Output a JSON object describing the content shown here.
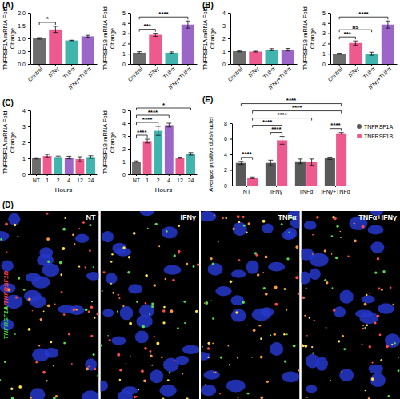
{
  "chart_data": [
    {
      "type": "bar",
      "panel_label": "(A)",
      "y_label": [
        "TNFRSF1A mRNA Fold",
        "Change"
      ],
      "categories": [
        "Control",
        "IFNγ",
        "TNFα",
        "IFNγ+TNFα"
      ],
      "values": [
        1.0,
        1.35,
        0.92,
        1.08
      ],
      "errors": [
        0.03,
        0.12,
        0.01,
        0.04
      ],
      "colors": [
        "#6d6d6d",
        "#ee5a8e",
        "#40b4ad",
        "#9c66c9"
      ],
      "ylim": [
        0,
        2
      ],
      "yticks": [
        {
          "value": 0,
          "label": "0.0"
        },
        {
          "value": 0.5,
          "label": "0.5"
        },
        {
          "value": 1,
          "label": "1.0"
        },
        {
          "value": 1.5,
          "label": "1.5"
        },
        {
          "value": 2,
          "label": "2.0"
        }
      ],
      "significance": [
        {
          "from": 0,
          "to": 1,
          "label": "*"
        }
      ]
    },
    {
      "type": "bar",
      "y_label": [
        "TNFRSF1B mRNA Fold",
        "Change"
      ],
      "categories": [
        "Control",
        "IFNγ",
        "TNFα",
        "IFNγ+TNFα"
      ],
      "values": [
        1.1,
        2.85,
        1.1,
        3.85
      ],
      "errors": [
        0.1,
        0.15,
        0.08,
        0.35
      ],
      "colors": [
        "#6d6d6d",
        "#ee5a8e",
        "#40b4ad",
        "#9c66c9"
      ],
      "ylim": [
        0,
        5
      ],
      "yticks": [
        0,
        1,
        2,
        3,
        4,
        5
      ],
      "significance": [
        {
          "from": 0,
          "to": 1,
          "label": "***"
        },
        {
          "from": 0,
          "to": 3,
          "label": "****"
        }
      ]
    },
    {
      "type": "bar",
      "panel_label": "(B)",
      "y_label": [
        "TNFRSF1A mRNA Fold",
        "Change"
      ],
      "categories": [
        "Control",
        "IFNγ",
        "TNFα",
        "IFNγ+TNFα"
      ],
      "values": [
        1.0,
        0.97,
        1.12,
        1.12
      ],
      "errors": [
        0.05,
        0.03,
        0.08,
        0.1
      ],
      "colors": [
        "#6d6d6d",
        "#ee5a8e",
        "#40b4ad",
        "#9c66c9"
      ],
      "ylim": [
        0,
        4
      ],
      "yticks": [
        0,
        1,
        2,
        3,
        4
      ]
    },
    {
      "type": "bar",
      "y_label": [
        "TNFRSF1B mRNA Fold",
        "Change"
      ],
      "categories": [
        "Control",
        "IFNγ",
        "TNFα",
        "IFNγ+TNFα"
      ],
      "values": [
        1.0,
        2.05,
        1.0,
        3.85
      ],
      "errors": [
        0.05,
        0.2,
        0.15,
        0.35
      ],
      "colors": [
        "#6d6d6d",
        "#ee5a8e",
        "#40b4ad",
        "#9c66c9"
      ],
      "ylim": [
        0,
        5
      ],
      "yticks": [
        0,
        1,
        2,
        3,
        4,
        5
      ],
      "significance": [
        {
          "from": 0,
          "to": 1,
          "label": "***"
        },
        {
          "from": 0,
          "to": 2,
          "label": "ns"
        },
        {
          "from": 0,
          "to": 3,
          "label": "****"
        }
      ]
    },
    {
      "type": "bar",
      "panel_label": "(C)",
      "y_label": [
        "TNFRSF1A mRNA Fold",
        "Change"
      ],
      "x_label": "Hours",
      "categories": [
        "NT",
        "1",
        "2",
        "4",
        "12",
        "24"
      ],
      "values": [
        1.0,
        1.15,
        1.08,
        1.05,
        0.95,
        1.08
      ],
      "errors": [
        0.04,
        0.1,
        0.06,
        0.08,
        0.15,
        0.08
      ],
      "colors": [
        "#6d6d6d",
        "#ee5a8e",
        "#40b4ad",
        "#9c66c9",
        "#ee5a8e",
        "#40b4ad"
      ],
      "ylim": [
        0,
        4
      ],
      "yticks": [
        0,
        1,
        2,
        3,
        4
      ]
    },
    {
      "type": "bar",
      "y_label": [
        "TNFRSF1B mRNA Fold",
        "Change"
      ],
      "x_label": "Hours",
      "categories": [
        "NT",
        "1",
        "2",
        "4",
        "12",
        "24"
      ],
      "values": [
        1.0,
        2.6,
        3.4,
        3.85,
        1.3,
        1.6
      ],
      "errors": [
        0.05,
        0.15,
        0.35,
        0.15,
        0.05,
        0.1
      ],
      "colors": [
        "#6d6d6d",
        "#ee5a8e",
        "#40b4ad",
        "#9c66c9",
        "#ee5a8e",
        "#40b4ad"
      ],
      "ylim": [
        0,
        5
      ],
      "yticks": [
        0,
        1,
        2,
        3,
        4,
        5
      ],
      "significance": [
        {
          "from": 0,
          "to": 1,
          "label": "****"
        },
        {
          "from": 0,
          "to": 2,
          "label": "****"
        },
        {
          "from": 0,
          "to": 3,
          "label": "****"
        },
        {
          "from": 0,
          "to": 5,
          "label": "*"
        }
      ]
    },
    {
      "type": "bar",
      "panel_label": "(E)",
      "y_label": [
        "Avergae positive dots/nuclei"
      ],
      "categories": [
        "NT",
        "IFNγ",
        "TNFα",
        "IFNγ+TNFα"
      ],
      "series": [
        {
          "name": "TNFRSF1A",
          "color": "#595959",
          "values": [
            2.9,
            2.9,
            3.1,
            3.5
          ],
          "errors": [
            0.2,
            0.35,
            0.3,
            0.15
          ]
        },
        {
          "name": "TNFRSF1B",
          "color": "#ee5a8e",
          "values": [
            1.0,
            5.8,
            3.0,
            6.7
          ],
          "errors": [
            0.1,
            0.5,
            0.4,
            0.1
          ]
        }
      ],
      "ylim": [
        0,
        8
      ],
      "yticks": [
        0,
        2,
        4,
        6,
        8
      ],
      "legend": "right",
      "significance": [
        {
          "from": [
            0,
            0
          ],
          "to": [
            0,
            1
          ],
          "label": "****"
        },
        {
          "from": [
            1,
            0
          ],
          "to": [
            1,
            1
          ],
          "label": "****"
        },
        {
          "from": [
            3,
            0
          ],
          "to": [
            3,
            1
          ],
          "label": "****"
        },
        {
          "from": [
            0,
            1
          ],
          "to": [
            1,
            1
          ],
          "label": "****"
        },
        {
          "from": [
            0,
            1
          ],
          "to": [
            2,
            1
          ],
          "label": "****"
        },
        {
          "from": [
            0,
            1
          ],
          "to": [
            3,
            1
          ],
          "label": "****"
        },
        {
          "from": [
            0,
            0
          ],
          "to": [
            3,
            1
          ],
          "label": "****"
        }
      ]
    },
    {
      "type": "image",
      "panel_label": "(D)",
      "labels": [
        "NT",
        "IFNγ",
        "TNFα",
        "TNFα+IFNγ"
      ],
      "channel_labels": [
        {
          "text": "TNFRSF1A",
          "color": "#3ddc3d"
        },
        {
          "text": "/TNFRSF1B",
          "color": "#ff4040"
        }
      ]
    }
  ]
}
